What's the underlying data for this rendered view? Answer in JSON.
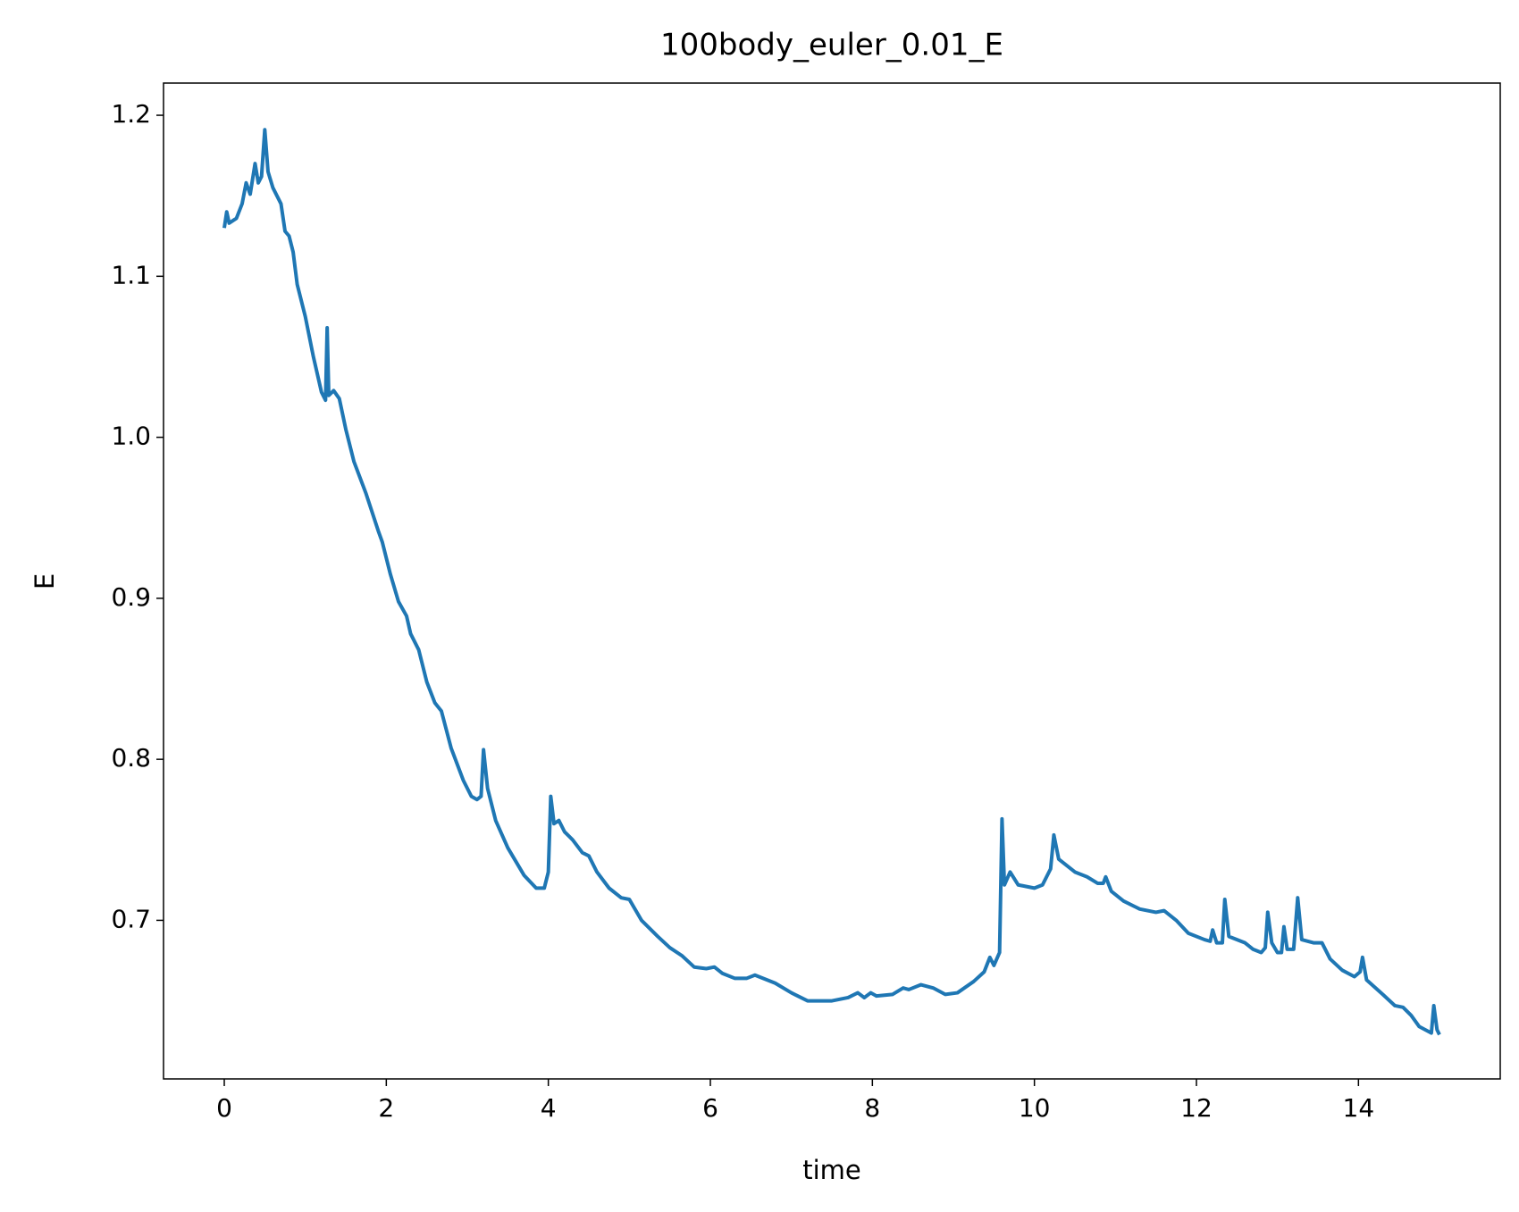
{
  "chart_data": {
    "type": "line",
    "title": "100body_euler_0.01_E",
    "x_label": "time",
    "y_label": "E",
    "xlim": [
      -0.75,
      15.75
    ],
    "ylim": [
      0.6015,
      1.22
    ],
    "xticks": [
      0,
      2,
      4,
      6,
      8,
      10,
      12,
      14
    ],
    "yticks": [
      0.7,
      0.8,
      0.9,
      {
        "value": 1,
        "label": "1.0"
      },
      1.1,
      1.2
    ],
    "series": [
      {
        "name": "E",
        "color": "#1f77b4",
        "x": [
          0,
          0.03,
          0.06,
          0.15,
          0.22,
          0.27,
          0.32,
          0.38,
          0.42,
          0.46,
          0.5,
          0.54,
          0.6,
          0.7,
          0.75,
          0.8,
          0.85,
          0.9,
          1.0,
          1.1,
          1.2,
          1.25,
          1.27,
          1.29,
          1.35,
          1.42,
          1.5,
          1.6,
          1.75,
          1.9,
          1.95,
          2.05,
          2.15,
          2.25,
          2.3,
          2.4,
          2.5,
          2.6,
          2.68,
          2.8,
          2.95,
          3.05,
          3.12,
          3.17,
          3.2,
          3.25,
          3.35,
          3.5,
          3.7,
          3.85,
          3.95,
          4.0,
          4.03,
          4.07,
          4.13,
          4.2,
          4.3,
          4.42,
          4.5,
          4.6,
          4.75,
          4.9,
          5.0,
          5.15,
          5.35,
          5.5,
          5.65,
          5.8,
          5.95,
          6.05,
          6.15,
          6.3,
          6.45,
          6.55,
          6.8,
          7.0,
          7.2,
          7.5,
          7.7,
          7.82,
          7.9,
          7.98,
          8.05,
          8.25,
          8.38,
          8.45,
          8.6,
          8.75,
          8.9,
          9.05,
          9.25,
          9.38,
          9.45,
          9.5,
          9.57,
          9.6,
          9.63,
          9.7,
          9.8,
          10.0,
          10.1,
          10.2,
          10.24,
          10.3,
          10.5,
          10.65,
          10.78,
          10.85,
          10.88,
          10.95,
          11.1,
          11.3,
          11.5,
          11.6,
          11.75,
          11.9,
          12.1,
          12.17,
          12.2,
          12.25,
          12.32,
          12.35,
          12.4,
          12.6,
          12.7,
          12.8,
          12.85,
          12.88,
          12.93,
          13.0,
          13.05,
          13.08,
          13.12,
          13.2,
          13.25,
          13.3,
          13.45,
          13.55,
          13.65,
          13.8,
          13.95,
          14.02,
          14.05,
          14.1,
          14.3,
          14.45,
          14.55,
          14.65,
          14.75,
          14.9,
          14.93,
          14.97,
          15.0
        ],
        "values": [
          1.13,
          1.14,
          1.133,
          1.136,
          1.145,
          1.158,
          1.151,
          1.17,
          1.158,
          1.162,
          1.191,
          1.165,
          1.155,
          1.145,
          1.128,
          1.125,
          1.115,
          1.095,
          1.075,
          1.05,
          1.028,
          1.023,
          1.068,
          1.026,
          1.029,
          1.024,
          1.005,
          0.985,
          0.965,
          0.942,
          0.935,
          0.915,
          0.898,
          0.889,
          0.878,
          0.868,
          0.848,
          0.835,
          0.83,
          0.807,
          0.787,
          0.777,
          0.775,
          0.777,
          0.806,
          0.782,
          0.762,
          0.745,
          0.728,
          0.72,
          0.72,
          0.73,
          0.777,
          0.76,
          0.762,
          0.755,
          0.75,
          0.742,
          0.74,
          0.73,
          0.72,
          0.714,
          0.713,
          0.7,
          0.69,
          0.683,
          0.678,
          0.671,
          0.67,
          0.671,
          0.667,
          0.664,
          0.664,
          0.666,
          0.661,
          0.655,
          0.65,
          0.65,
          0.652,
          0.655,
          0.652,
          0.655,
          0.653,
          0.654,
          0.658,
          0.657,
          0.66,
          0.658,
          0.654,
          0.655,
          0.662,
          0.668,
          0.677,
          0.672,
          0.68,
          0.763,
          0.722,
          0.73,
          0.722,
          0.72,
          0.722,
          0.732,
          0.753,
          0.738,
          0.73,
          0.727,
          0.723,
          0.723,
          0.727,
          0.718,
          0.712,
          0.707,
          0.705,
          0.706,
          0.7,
          0.692,
          0.688,
          0.687,
          0.694,
          0.686,
          0.686,
          0.713,
          0.69,
          0.686,
          0.682,
          0.68,
          0.683,
          0.705,
          0.686,
          0.68,
          0.68,
          0.696,
          0.682,
          0.682,
          0.714,
          0.688,
          0.686,
          0.686,
          0.676,
          0.669,
          0.665,
          0.668,
          0.677,
          0.663,
          0.654,
          0.647,
          0.646,
          0.641,
          0.634,
          0.63,
          0.647,
          0.632,
          0.629
        ]
      }
    ]
  }
}
